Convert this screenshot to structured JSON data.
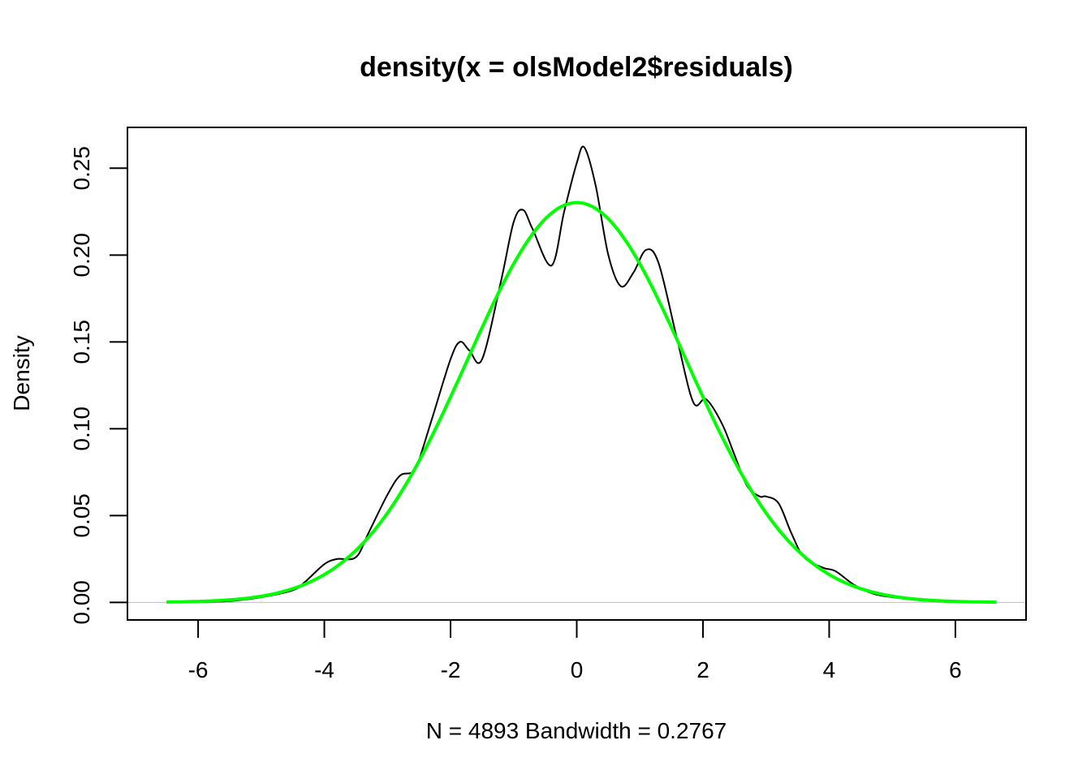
{
  "chart_data": {
    "type": "line",
    "title": "density(x = olsModel2$residuals)",
    "xlabel": "N = 4893   Bandwidth = 0.2767",
    "ylabel": "Density",
    "xlim": [
      -7.12,
      7.12
    ],
    "ylim": [
      -0.0101,
      0.2735
    ],
    "x_ticks": [
      -6,
      -4,
      -2,
      0,
      2,
      4,
      6
    ],
    "x_tick_labels": [
      "-6",
      "-4",
      "-2",
      "0",
      "2",
      "4",
      "6"
    ],
    "y_ticks": [
      0.0,
      0.05,
      0.1,
      0.15,
      0.2,
      0.25
    ],
    "y_tick_labels": [
      "0.00",
      "0.05",
      "0.10",
      "0.15",
      "0.20",
      "0.25"
    ],
    "grid": false,
    "baseline_y": 0,
    "baseline_color": "#bebebe",
    "series": [
      {
        "color": "#000000",
        "x": [
          -6.5,
          -6.0,
          -5.5,
          -5.0,
          -4.5,
          -4.3,
          -4.0,
          -3.8,
          -3.5,
          -3.3,
          -3.0,
          -2.8,
          -2.6,
          -2.5,
          -2.3,
          -2.0,
          -1.85,
          -1.7,
          -1.5,
          -1.2,
          -1.0,
          -0.85,
          -0.7,
          -0.4,
          -0.2,
          0.0,
          0.12,
          0.3,
          0.5,
          0.7,
          0.9,
          1.1,
          1.3,
          1.6,
          1.85,
          2.05,
          2.3,
          2.5,
          2.7,
          2.9,
          3.0,
          3.2,
          3.4,
          3.6,
          3.9,
          4.1,
          4.4,
          4.7,
          5.0,
          5.5,
          6.0,
          6.65
        ],
        "y": [
          0.0,
          0.0002,
          0.0008,
          0.003,
          0.007,
          0.012,
          0.022,
          0.025,
          0.026,
          0.04,
          0.062,
          0.073,
          0.075,
          0.082,
          0.105,
          0.14,
          0.15,
          0.145,
          0.14,
          0.185,
          0.219,
          0.226,
          0.215,
          0.194,
          0.225,
          0.253,
          0.262,
          0.24,
          0.2,
          0.182,
          0.19,
          0.203,
          0.195,
          0.15,
          0.115,
          0.117,
          0.103,
          0.085,
          0.067,
          0.061,
          0.061,
          0.057,
          0.04,
          0.026,
          0.02,
          0.018,
          0.01,
          0.005,
          0.003,
          0.001,
          0.0002,
          0.0
        ]
      },
      {
        "color": "#00ff00",
        "mean": 0,
        "sd": 1.733,
        "x_from": -6.5,
        "x_to": 6.65
      }
    ]
  }
}
